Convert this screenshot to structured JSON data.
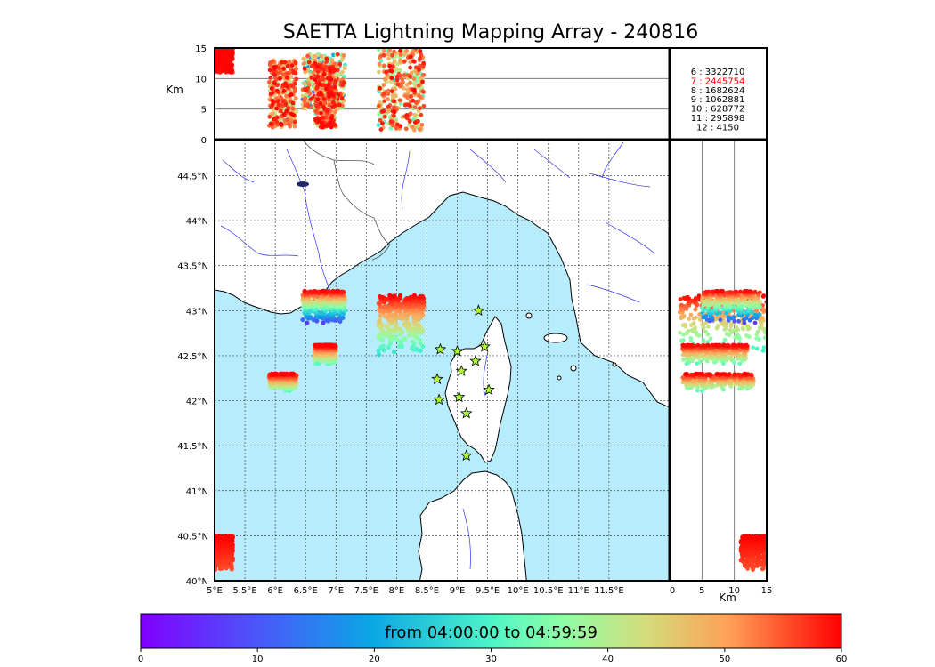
{
  "title": "SAETTA Lightning Mapping Array - 240816",
  "time_range": "from 04:00:00 to 04:59:59",
  "units": {
    "km_top": "Km",
    "km_right": "Km"
  },
  "colors": {
    "sea": "#b6ecfb",
    "land": "#ffffff",
    "coast": "#000000",
    "rivers": "#3030ee",
    "borders": "#555555",
    "station_fill": "#adff2f"
  },
  "chart_data": {
    "type": "scatter",
    "map": {
      "lon_range": [
        5.0,
        12.5
      ],
      "lat_range": [
        40.0,
        44.9
      ],
      "lon_ticks": [
        5.0,
        5.5,
        6.0,
        6.5,
        7.0,
        7.5,
        8.0,
        8.5,
        9.0,
        9.5,
        10.0,
        10.5,
        11.0,
        11.5
      ],
      "lon_tick_labels": [
        "5°E",
        "5.5°E",
        "6°E",
        "6.5°E",
        "7°E",
        "7.5°E",
        "8°E",
        "8.5°E",
        "9°E",
        "9.5°E",
        "10°E",
        "10.5°E",
        "11°E",
        "11.5°E"
      ],
      "lat_ticks": [
        40.0,
        40.5,
        41.0,
        41.5,
        42.0,
        42.5,
        43.0,
        43.5,
        44.0,
        44.5
      ],
      "lat_tick_labels": [
        "40°N",
        "40.5°N",
        "41°N",
        "41.5°N",
        "42°N",
        "42.5°N",
        "43°N",
        "43.5°N",
        "44°N",
        "44.5°N"
      ],
      "grid": true
    },
    "altitude_km": {
      "range": [
        0,
        15
      ],
      "ticks": [
        0,
        5,
        10,
        15
      ],
      "tick_labels": [
        "0",
        "5",
        "10",
        "15"
      ]
    },
    "colorbar": {
      "range": [
        0,
        60
      ],
      "ticks": [
        0,
        10,
        20,
        30,
        40,
        50,
        60
      ],
      "tick_labels": [
        "0",
        "10",
        "20",
        "30",
        "40",
        "50",
        "60"
      ],
      "colormap": "rainbow"
    },
    "station_counts": [
      {
        "label": "6  :  3322710",
        "highlight": false
      },
      {
        "label": "7  :  2445754",
        "highlight": true
      },
      {
        "label": "8  :  1682624",
        "highlight": false
      },
      {
        "label": "9  :  1062881",
        "highlight": false
      },
      {
        "label": "10  :    628772",
        "highlight": false
      },
      {
        "label": "11  :    295898",
        "highlight": false
      },
      {
        "label": "12  :      4150",
        "highlight": false
      }
    ],
    "stations": [
      {
        "lon": 9.35,
        "lat": 43.0
      },
      {
        "lon": 8.72,
        "lat": 42.57
      },
      {
        "lon": 9.0,
        "lat": 42.55
      },
      {
        "lon": 9.45,
        "lat": 42.6
      },
      {
        "lon": 9.3,
        "lat": 42.44
      },
      {
        "lon": 9.07,
        "lat": 42.33
      },
      {
        "lon": 8.67,
        "lat": 42.24
      },
      {
        "lon": 9.52,
        "lat": 42.12
      },
      {
        "lon": 8.7,
        "lat": 42.01
      },
      {
        "lon": 9.03,
        "lat": 42.04
      },
      {
        "lon": 9.15,
        "lat": 41.86
      },
      {
        "lon": 9.15,
        "lat": 41.39
      }
    ],
    "clusters": [
      {
        "name": "ligurian-main",
        "lon": [
          7.7,
          8.45
        ],
        "lat": [
          42.48,
          43.17
        ],
        "alt": [
          1.5,
          15
        ],
        "t": [
          25,
          60
        ]
      },
      {
        "name": "ligurian-west",
        "lon": [
          6.45,
          7.15
        ],
        "lat": [
          42.85,
          43.22
        ],
        "alt": [
          5,
          14
        ],
        "t": [
          5,
          60
        ]
      },
      {
        "name": "nice-offshore",
        "lon": [
          6.65,
          7.0
        ],
        "lat": [
          42.4,
          42.62
        ],
        "alt": [
          2,
          12
        ],
        "t": [
          30,
          60
        ]
      },
      {
        "name": "toulon-offshore",
        "lon": [
          5.9,
          6.35
        ],
        "lat": [
          42.1,
          42.3
        ],
        "alt": [
          2,
          13
        ],
        "t": [
          30,
          60
        ]
      },
      {
        "name": "balearic-edge",
        "lon": [
          5.0,
          5.3
        ],
        "lat": [
          40.1,
          40.5
        ],
        "alt": [
          11,
          15
        ],
        "t": [
          55,
          60
        ]
      }
    ]
  }
}
